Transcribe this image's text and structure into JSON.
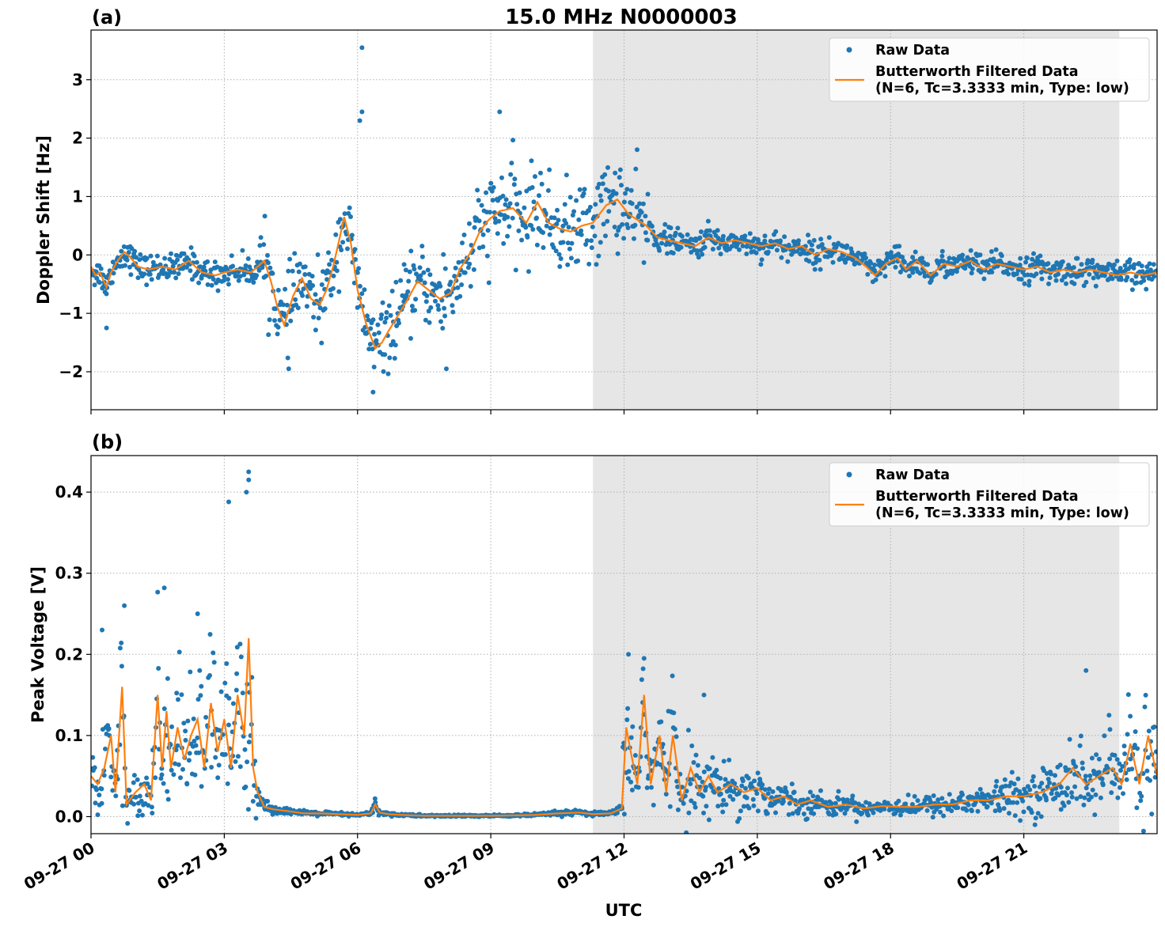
{
  "figure": {
    "title": "15.0 MHz N0000003",
    "xlabel": "UTC",
    "x_tick_labels": [
      "09-27 00",
      "09-27 03",
      "09-27 06",
      "09-27 09",
      "09-27 12",
      "09-27 15",
      "09-27 18",
      "09-27 21"
    ]
  },
  "colors": {
    "raw": "#1f77b4",
    "filtered": "#ff7f0e",
    "night_shade": "#e6e6e6",
    "grid": "#b0b0b0"
  },
  "chart_data": [
    {
      "type": "scatter",
      "panel_label": "(a)",
      "title": "15.0 MHz N0000003",
      "xlabel": "",
      "ylabel": "Doppler Shift [Hz]",
      "x_unit": "hours since 09-27 00 UTC",
      "xlim": [
        0,
        24
      ],
      "ylim": [
        -2.65,
        3.85
      ],
      "yticks": [
        -2,
        -1,
        0,
        1,
        2,
        3
      ],
      "ytick_labels": [
        "−2",
        "−1",
        "0",
        "1",
        "2",
        "3"
      ],
      "shaded_x_range": [
        11.3,
        23.15
      ],
      "legend": {
        "placement": "top-right",
        "entries": [
          {
            "marker": "dot",
            "label": "Raw Data"
          },
          {
            "marker": "line",
            "label": "Butterworth Filtered Data",
            "label_line2": "(N=6, Tc=3.3333 min, Type: low)"
          }
        ]
      },
      "series": [
        {
          "name": "Butterworth Filtered Data (N=6, Tc=3.3333 min, Type: low)",
          "style": "line",
          "x": [
            0,
            0.1,
            0.2,
            0.35,
            0.45,
            0.6,
            0.75,
            0.9,
            1.05,
            1.3,
            1.6,
            1.9,
            2.2,
            2.5,
            2.8,
            3.0,
            3.3,
            3.6,
            3.9,
            4.05,
            4.2,
            4.35,
            4.55,
            4.75,
            4.95,
            5.15,
            5.3,
            5.45,
            5.6,
            5.7,
            5.85,
            6.0,
            6.2,
            6.4,
            6.55,
            6.7,
            6.9,
            7.1,
            7.35,
            7.6,
            7.85,
            8.1,
            8.3,
            8.55,
            8.75,
            8.95,
            9.2,
            9.5,
            9.8,
            10.05,
            10.3,
            10.55,
            10.8,
            11.05,
            11.3,
            11.6,
            11.85,
            12.1,
            12.3,
            12.5,
            12.75,
            13.0,
            13.3,
            13.6,
            13.9,
            14.2,
            14.5,
            14.8,
            15.1,
            15.4,
            15.7,
            16.0,
            16.3,
            16.6,
            16.9,
            17.2,
            17.45,
            17.65,
            17.9,
            18.15,
            18.35,
            18.6,
            18.9,
            19.2,
            19.5,
            19.8,
            20.1,
            20.4,
            20.7,
            21.0,
            21.3,
            21.6,
            21.9,
            22.2,
            22.5,
            22.8,
            23.1,
            23.4,
            23.7,
            24.0
          ],
          "values": [
            -0.2,
            -0.35,
            -0.3,
            -0.55,
            -0.3,
            -0.1,
            0.05,
            -0.05,
            -0.2,
            -0.25,
            -0.2,
            -0.25,
            -0.1,
            -0.3,
            -0.35,
            -0.3,
            -0.25,
            -0.3,
            -0.1,
            -0.45,
            -0.9,
            -1.2,
            -0.7,
            -0.4,
            -0.75,
            -0.85,
            -0.6,
            -0.2,
            0.3,
            0.65,
            0.2,
            -0.6,
            -1.2,
            -1.6,
            -1.5,
            -1.3,
            -1.05,
            -0.8,
            -0.45,
            -0.6,
            -0.75,
            -0.65,
            -0.25,
            0.05,
            0.4,
            0.6,
            0.75,
            0.8,
            0.55,
            0.9,
            0.55,
            0.45,
            0.4,
            0.5,
            0.55,
            0.85,
            0.95,
            0.7,
            0.6,
            0.5,
            0.3,
            0.25,
            0.2,
            0.15,
            0.3,
            0.2,
            0.25,
            0.2,
            0.15,
            0.2,
            0.1,
            0.15,
            0.0,
            0.1,
            0.05,
            -0.05,
            -0.2,
            -0.35,
            -0.15,
            -0.05,
            -0.25,
            -0.1,
            -0.35,
            -0.15,
            -0.2,
            -0.1,
            -0.25,
            -0.15,
            -0.2,
            -0.25,
            -0.2,
            -0.3,
            -0.25,
            -0.3,
            -0.25,
            -0.3,
            -0.35,
            -0.3,
            -0.35,
            -0.3
          ]
        },
        {
          "name": "Raw Data",
          "style": "points",
          "outliers_x": [
            6.1,
            6.1,
            6.05,
            9.2,
            8.0,
            6.35,
            0.35,
            4.45
          ],
          "outliers_y": [
            3.55,
            2.45,
            2.3,
            2.45,
            -1.95,
            -2.35,
            -1.25,
            -1.95
          ]
        }
      ]
    },
    {
      "type": "scatter",
      "panel_label": "(b)",
      "title": "",
      "xlabel": "UTC",
      "ylabel": "Peak Voltage [V]",
      "x_unit": "hours since 09-27 00 UTC",
      "xlim": [
        0,
        24
      ],
      "ylim": [
        -0.021,
        0.445
      ],
      "yticks": [
        0.0,
        0.1,
        0.2,
        0.3,
        0.4
      ],
      "ytick_labels": [
        "0.0",
        "0.1",
        "0.2",
        "0.3",
        "0.4"
      ],
      "shaded_x_range": [
        11.3,
        23.15
      ],
      "legend": {
        "placement": "top-right",
        "entries": [
          {
            "marker": "dot",
            "label": "Raw Data"
          },
          {
            "marker": "line",
            "label": "Butterworth Filtered Data",
            "label_line2": "(N=6, Tc=3.3333 min, Type: low)"
          }
        ]
      },
      "series": [
        {
          "name": "Butterworth Filtered Data (N=6, Tc=3.3333 min, Type: low)",
          "style": "line",
          "x": [
            0,
            0.15,
            0.3,
            0.45,
            0.55,
            0.7,
            0.8,
            1.0,
            1.2,
            1.35,
            1.5,
            1.6,
            1.7,
            1.8,
            1.95,
            2.1,
            2.25,
            2.4,
            2.55,
            2.7,
            2.85,
            3.0,
            3.15,
            3.3,
            3.45,
            3.55,
            3.65,
            3.75,
            3.9,
            4.1,
            4.4,
            4.8,
            5.2,
            5.6,
            6.0,
            6.3,
            6.4,
            6.5,
            6.7,
            7.0,
            7.5,
            8.0,
            9.0,
            10.0,
            10.5,
            11.0,
            11.3,
            11.7,
            11.95,
            12.05,
            12.15,
            12.3,
            12.45,
            12.6,
            12.8,
            12.95,
            13.1,
            13.3,
            13.5,
            13.7,
            13.9,
            14.1,
            14.4,
            14.7,
            15.0,
            15.3,
            15.6,
            15.9,
            16.2,
            16.6,
            17.0,
            17.4,
            17.8,
            18.2,
            18.6,
            19.0,
            19.4,
            19.8,
            20.2,
            20.6,
            21.0,
            21.4,
            21.8,
            22.1,
            22.4,
            22.7,
            23.0,
            23.2,
            23.4,
            23.6,
            23.8,
            24.0
          ],
          "values": [
            0.05,
            0.04,
            0.06,
            0.1,
            0.03,
            0.16,
            0.015,
            0.03,
            0.04,
            0.02,
            0.15,
            0.06,
            0.13,
            0.06,
            0.11,
            0.07,
            0.1,
            0.12,
            0.06,
            0.14,
            0.08,
            0.12,
            0.06,
            0.15,
            0.1,
            0.22,
            0.06,
            0.03,
            0.012,
            0.009,
            0.007,
            0.004,
            0.004,
            0.003,
            0.002,
            0.004,
            0.015,
            0.005,
            0.003,
            0.002,
            0.001,
            0.001,
            0.001,
            0.002,
            0.004,
            0.005,
            0.003,
            0.004,
            0.01,
            0.11,
            0.08,
            0.04,
            0.15,
            0.04,
            0.1,
            0.03,
            0.1,
            0.02,
            0.06,
            0.03,
            0.05,
            0.03,
            0.04,
            0.03,
            0.035,
            0.02,
            0.025,
            0.015,
            0.02,
            0.012,
            0.015,
            0.01,
            0.013,
            0.012,
            0.012,
            0.015,
            0.015,
            0.02,
            0.02,
            0.025,
            0.025,
            0.03,
            0.04,
            0.06,
            0.04,
            0.05,
            0.06,
            0.04,
            0.09,
            0.04,
            0.1,
            0.05
          ]
        },
        {
          "name": "Raw Data",
          "style": "points",
          "outliers_x": [
            3.55,
            3.55,
            3.5,
            3.1,
            0.25,
            0.75,
            1.65,
            2.4,
            12.1,
            12.45,
            22.4,
            13.0,
            13.8
          ],
          "outliers_y": [
            0.425,
            0.415,
            0.4,
            0.388,
            0.23,
            0.26,
            0.282,
            0.25,
            0.2,
            0.195,
            0.18,
            0.13,
            0.15
          ]
        }
      ]
    }
  ]
}
